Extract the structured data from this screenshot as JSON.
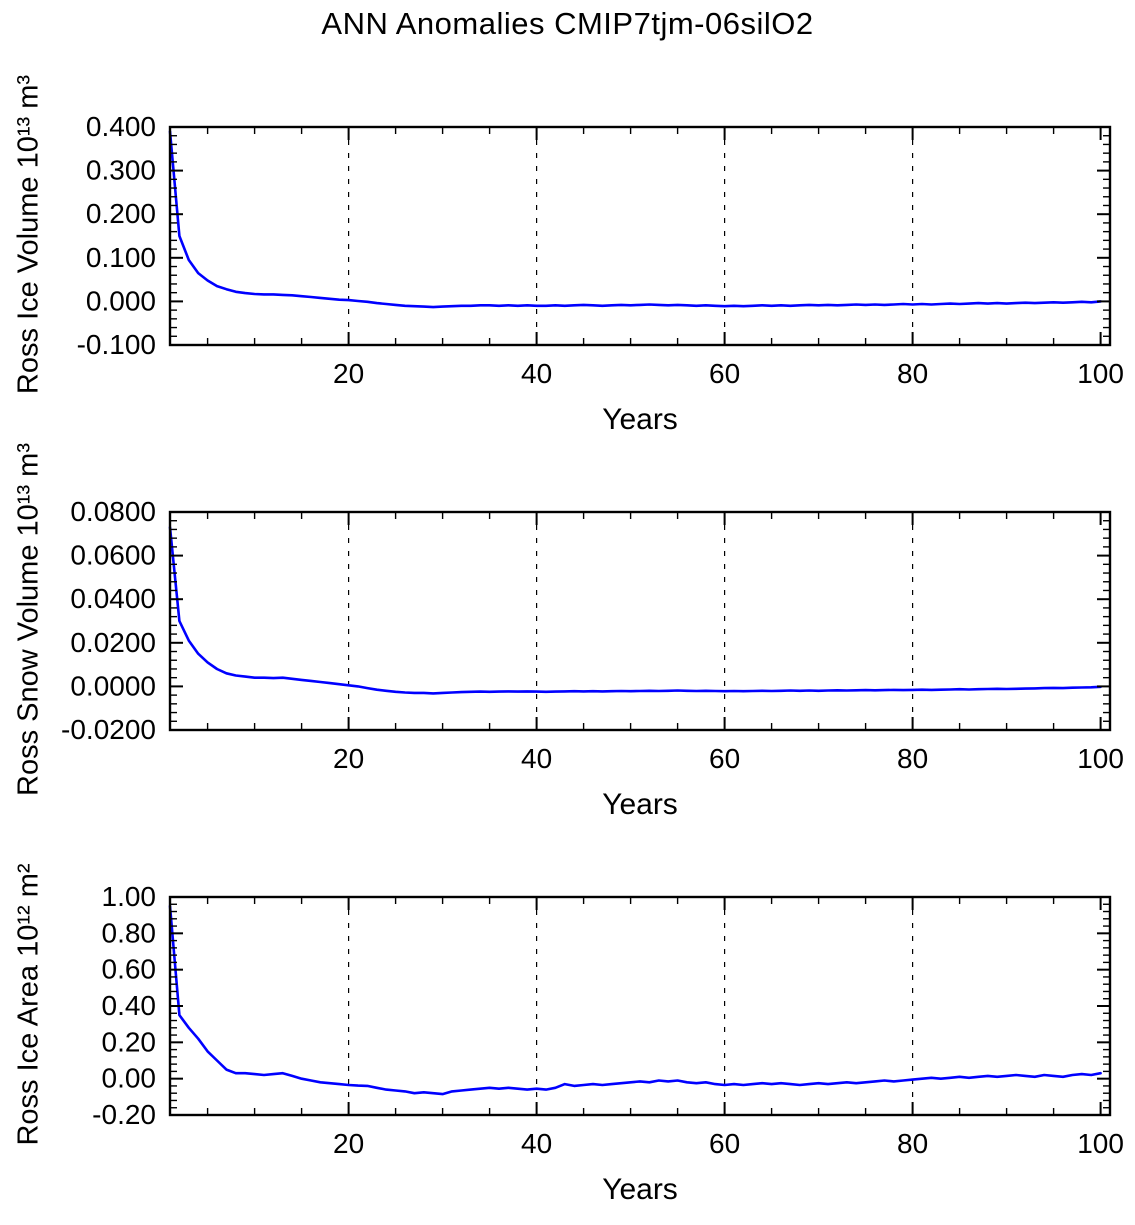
{
  "title": "ANN Anomalies CMIP7tjm-06silO2",
  "chart_data": [
    {
      "type": "line",
      "ylabel": "Ross Ice Volume 10¹³ m³",
      "xlabel": "Years",
      "xlim": [
        1,
        101
      ],
      "ylim": [
        -0.1,
        0.4
      ],
      "xticks": [
        20,
        40,
        60,
        80,
        100
      ],
      "xtick_labels": [
        "20",
        "40",
        "60",
        "80",
        "100"
      ],
      "x_minor_step": 5,
      "ytick_values": [
        0.4,
        0.3,
        0.2,
        0.1,
        0.0,
        -0.1
      ],
      "ytick_labels": [
        "0.400",
        "0.300",
        "0.200",
        "0.100",
        "0.000",
        "-0.100"
      ],
      "y_minor_step": 0.02,
      "grid_x": [
        20,
        40,
        60,
        80
      ],
      "grid_on": true,
      "legend": "none",
      "line_color": "#0000ff",
      "x_start": 1,
      "x_step": 1,
      "values": [
        0.39,
        0.15,
        0.095,
        0.065,
        0.048,
        0.035,
        0.028,
        0.022,
        0.019,
        0.017,
        0.016,
        0.016,
        0.015,
        0.014,
        0.012,
        0.01,
        0.008,
        0.006,
        0.004,
        0.003,
        0.001,
        -0.001,
        -0.004,
        -0.006,
        -0.008,
        -0.01,
        -0.011,
        -0.012,
        -0.013,
        -0.012,
        -0.011,
        -0.01,
        -0.01,
        -0.009,
        -0.009,
        -0.01,
        -0.009,
        -0.01,
        -0.009,
        -0.01,
        -0.01,
        -0.009,
        -0.01,
        -0.009,
        -0.008,
        -0.009,
        -0.01,
        -0.009,
        -0.008,
        -0.009,
        -0.008,
        -0.007,
        -0.008,
        -0.009,
        -0.008,
        -0.009,
        -0.01,
        -0.009,
        -0.01,
        -0.011,
        -0.01,
        -0.011,
        -0.01,
        -0.009,
        -0.01,
        -0.009,
        -0.01,
        -0.009,
        -0.008,
        -0.009,
        -0.008,
        -0.009,
        -0.008,
        -0.007,
        -0.008,
        -0.007,
        -0.008,
        -0.007,
        -0.006,
        -0.007,
        -0.006,
        -0.007,
        -0.006,
        -0.005,
        -0.006,
        -0.005,
        -0.004,
        -0.005,
        -0.004,
        -0.005,
        -0.004,
        -0.003,
        -0.004,
        -0.003,
        -0.002,
        -0.003,
        -0.002,
        -0.001,
        -0.002,
        0.0
      ]
    },
    {
      "type": "line",
      "ylabel": "Ross Snow Volume 10¹³ m³",
      "xlabel": "Years",
      "xlim": [
        1,
        101
      ],
      "ylim": [
        -0.02,
        0.08
      ],
      "xticks": [
        20,
        40,
        60,
        80,
        100
      ],
      "xtick_labels": [
        "20",
        "40",
        "60",
        "80",
        "100"
      ],
      "x_minor_step": 5,
      "ytick_values": [
        0.08,
        0.06,
        0.04,
        0.02,
        0.0,
        -0.02
      ],
      "ytick_labels": [
        "0.0800",
        "0.0600",
        "0.0400",
        "0.0200",
        "0.0000",
        "-0.0200"
      ],
      "y_minor_step": 0.004,
      "grid_x": [
        20,
        40,
        60,
        80
      ],
      "grid_on": true,
      "legend": "none",
      "line_color": "#0000ff",
      "x_start": 1,
      "x_step": 1,
      "values": [
        0.073,
        0.03,
        0.021,
        0.015,
        0.011,
        0.008,
        0.006,
        0.005,
        0.0045,
        0.004,
        0.004,
        0.0038,
        0.004,
        0.0035,
        0.003,
        0.0025,
        0.002,
        0.0015,
        0.001,
        0.0005,
        0.0,
        -0.0008,
        -0.0015,
        -0.002,
        -0.0025,
        -0.0028,
        -0.003,
        -0.003,
        -0.0032,
        -0.003,
        -0.0028,
        -0.0026,
        -0.0025,
        -0.0024,
        -0.0025,
        -0.0024,
        -0.0023,
        -0.0024,
        -0.0023,
        -0.0024,
        -0.0025,
        -0.0024,
        -0.0023,
        -0.0022,
        -0.0023,
        -0.0022,
        -0.0023,
        -0.0022,
        -0.0021,
        -0.0022,
        -0.0021,
        -0.002,
        -0.0021,
        -0.002,
        -0.0019,
        -0.002,
        -0.0021,
        -0.002,
        -0.0021,
        -0.0022,
        -0.0021,
        -0.0022,
        -0.0021,
        -0.002,
        -0.0021,
        -0.002,
        -0.0019,
        -0.002,
        -0.0019,
        -0.002,
        -0.0019,
        -0.0018,
        -0.0019,
        -0.0018,
        -0.0017,
        -0.0018,
        -0.0017,
        -0.0016,
        -0.0017,
        -0.0016,
        -0.0015,
        -0.0016,
        -0.0015,
        -0.0014,
        -0.0013,
        -0.0014,
        -0.0013,
        -0.0012,
        -0.0011,
        -0.0012,
        -0.0011,
        -0.001,
        -0.0009,
        -0.0008,
        -0.0007,
        -0.0008,
        -0.0006,
        -0.0005,
        -0.0004,
        -0.0002
      ]
    },
    {
      "type": "line",
      "ylabel": "Ross Ice Area 10¹² m²",
      "xlabel": "Years",
      "xlim": [
        1,
        101
      ],
      "ylim": [
        -0.2,
        1.0
      ],
      "xticks": [
        20,
        40,
        60,
        80,
        100
      ],
      "xtick_labels": [
        "20",
        "40",
        "60",
        "80",
        "100"
      ],
      "x_minor_step": 5,
      "ytick_values": [
        1.0,
        0.8,
        0.6,
        0.4,
        0.2,
        0.0,
        -0.2
      ],
      "ytick_labels": [
        "1.00",
        "0.80",
        "0.60",
        "0.40",
        "0.20",
        "0.00",
        "-0.20"
      ],
      "y_minor_step": 0.04,
      "grid_x": [
        20,
        40,
        60,
        80
      ],
      "grid_on": true,
      "legend": "none",
      "line_color": "#0000ff",
      "x_start": 1,
      "x_step": 1,
      "values": [
        0.95,
        0.35,
        0.28,
        0.22,
        0.15,
        0.1,
        0.05,
        0.03,
        0.03,
        0.025,
        0.02,
        0.025,
        0.03,
        0.015,
        0.0,
        -0.01,
        -0.02,
        -0.025,
        -0.03,
        -0.035,
        -0.038,
        -0.04,
        -0.05,
        -0.06,
        -0.065,
        -0.07,
        -0.08,
        -0.075,
        -0.08,
        -0.085,
        -0.07,
        -0.065,
        -0.06,
        -0.055,
        -0.05,
        -0.055,
        -0.05,
        -0.055,
        -0.06,
        -0.055,
        -0.06,
        -0.05,
        -0.03,
        -0.04,
        -0.035,
        -0.03,
        -0.035,
        -0.03,
        -0.025,
        -0.02,
        -0.015,
        -0.02,
        -0.01,
        -0.015,
        -0.01,
        -0.02,
        -0.025,
        -0.02,
        -0.03,
        -0.035,
        -0.03,
        -0.035,
        -0.03,
        -0.025,
        -0.03,
        -0.025,
        -0.03,
        -0.035,
        -0.03,
        -0.025,
        -0.03,
        -0.025,
        -0.02,
        -0.025,
        -0.02,
        -0.015,
        -0.01,
        -0.015,
        -0.01,
        -0.005,
        0.0,
        0.005,
        0.0,
        0.005,
        0.01,
        0.005,
        0.01,
        0.015,
        0.01,
        0.015,
        0.02,
        0.015,
        0.01,
        0.02,
        0.015,
        0.01,
        0.02,
        0.025,
        0.02,
        0.03
      ]
    }
  ]
}
